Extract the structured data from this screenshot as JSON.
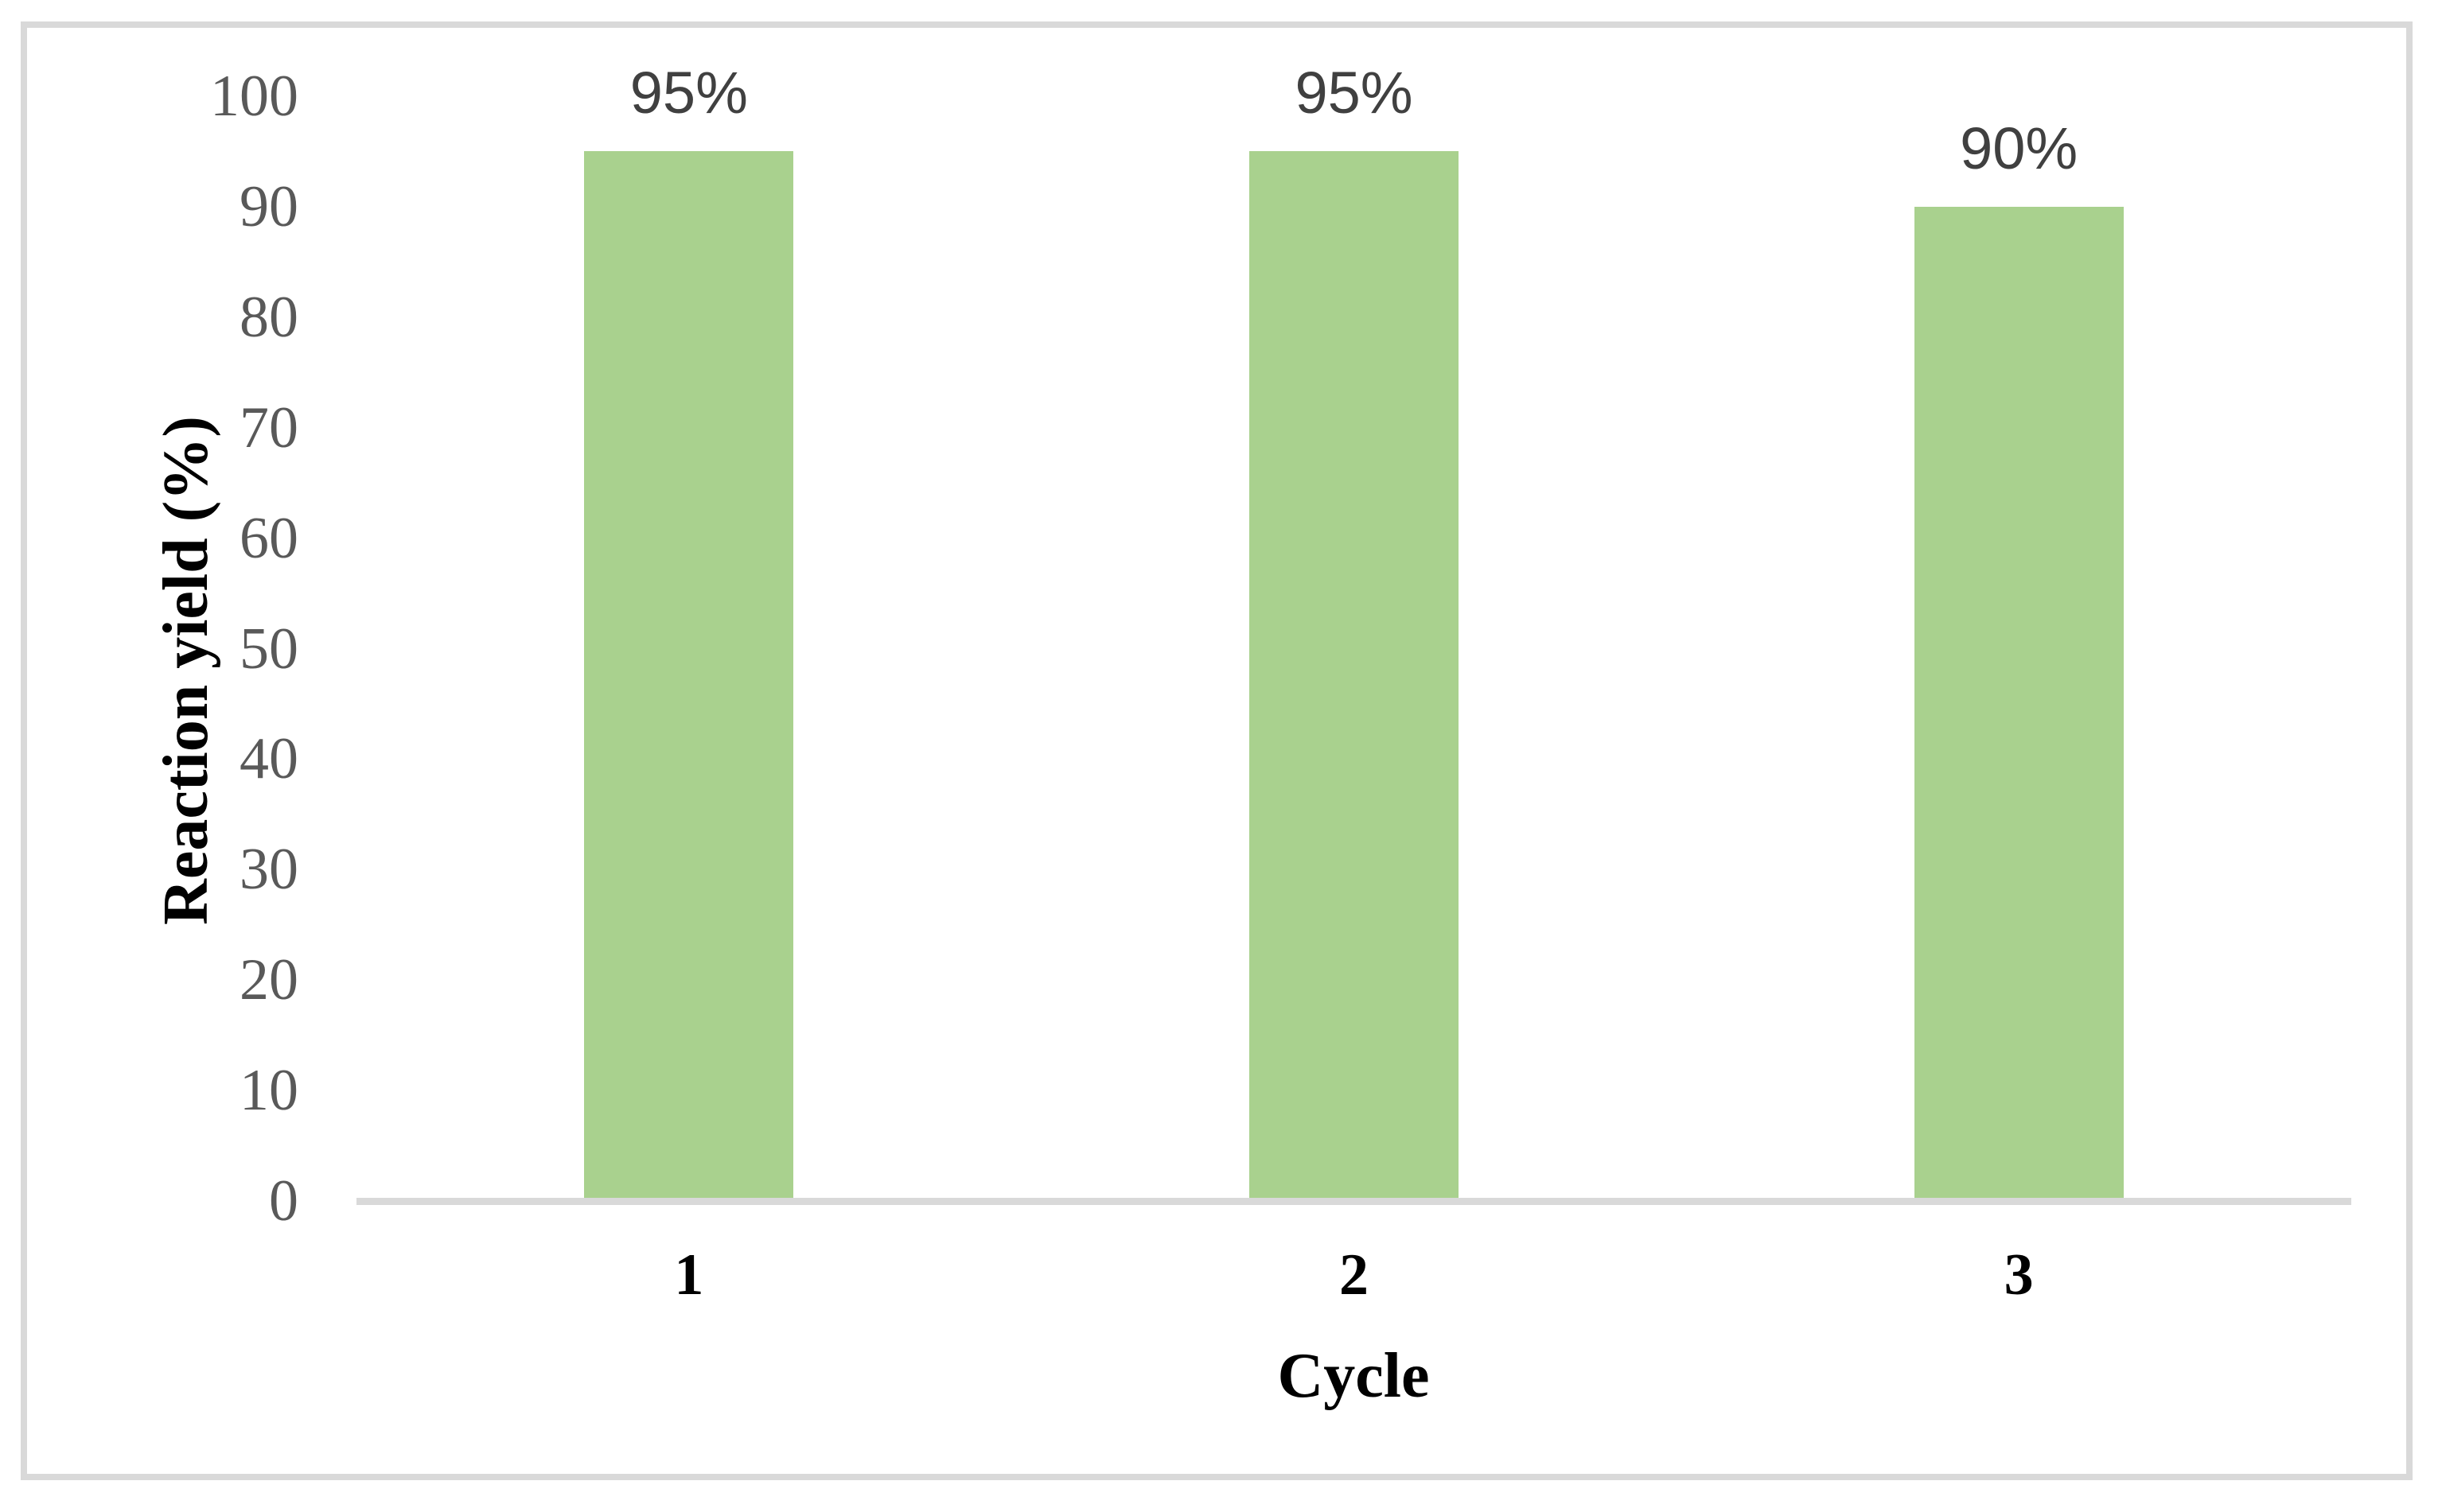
{
  "chart_data": {
    "type": "bar",
    "categories": [
      "1",
      "2",
      "3"
    ],
    "values": [
      95,
      95,
      90
    ],
    "data_labels": [
      "95%",
      "95%",
      "90%"
    ],
    "xlabel": "Cycle",
    "ylabel": "Reaction yield (%)",
    "ylim": [
      0,
      100
    ],
    "yticks": [
      0,
      10,
      20,
      30,
      40,
      50,
      60,
      70,
      80,
      90,
      100
    ],
    "grid": "off",
    "legend": "none",
    "bar_color": "#A9D18E",
    "axis_line_color": "#D9D9D9",
    "frame_border_color": "#D9D9D9",
    "tick_label_color": "#595959",
    "data_label_color": "#404040",
    "title_color": "#000000"
  }
}
